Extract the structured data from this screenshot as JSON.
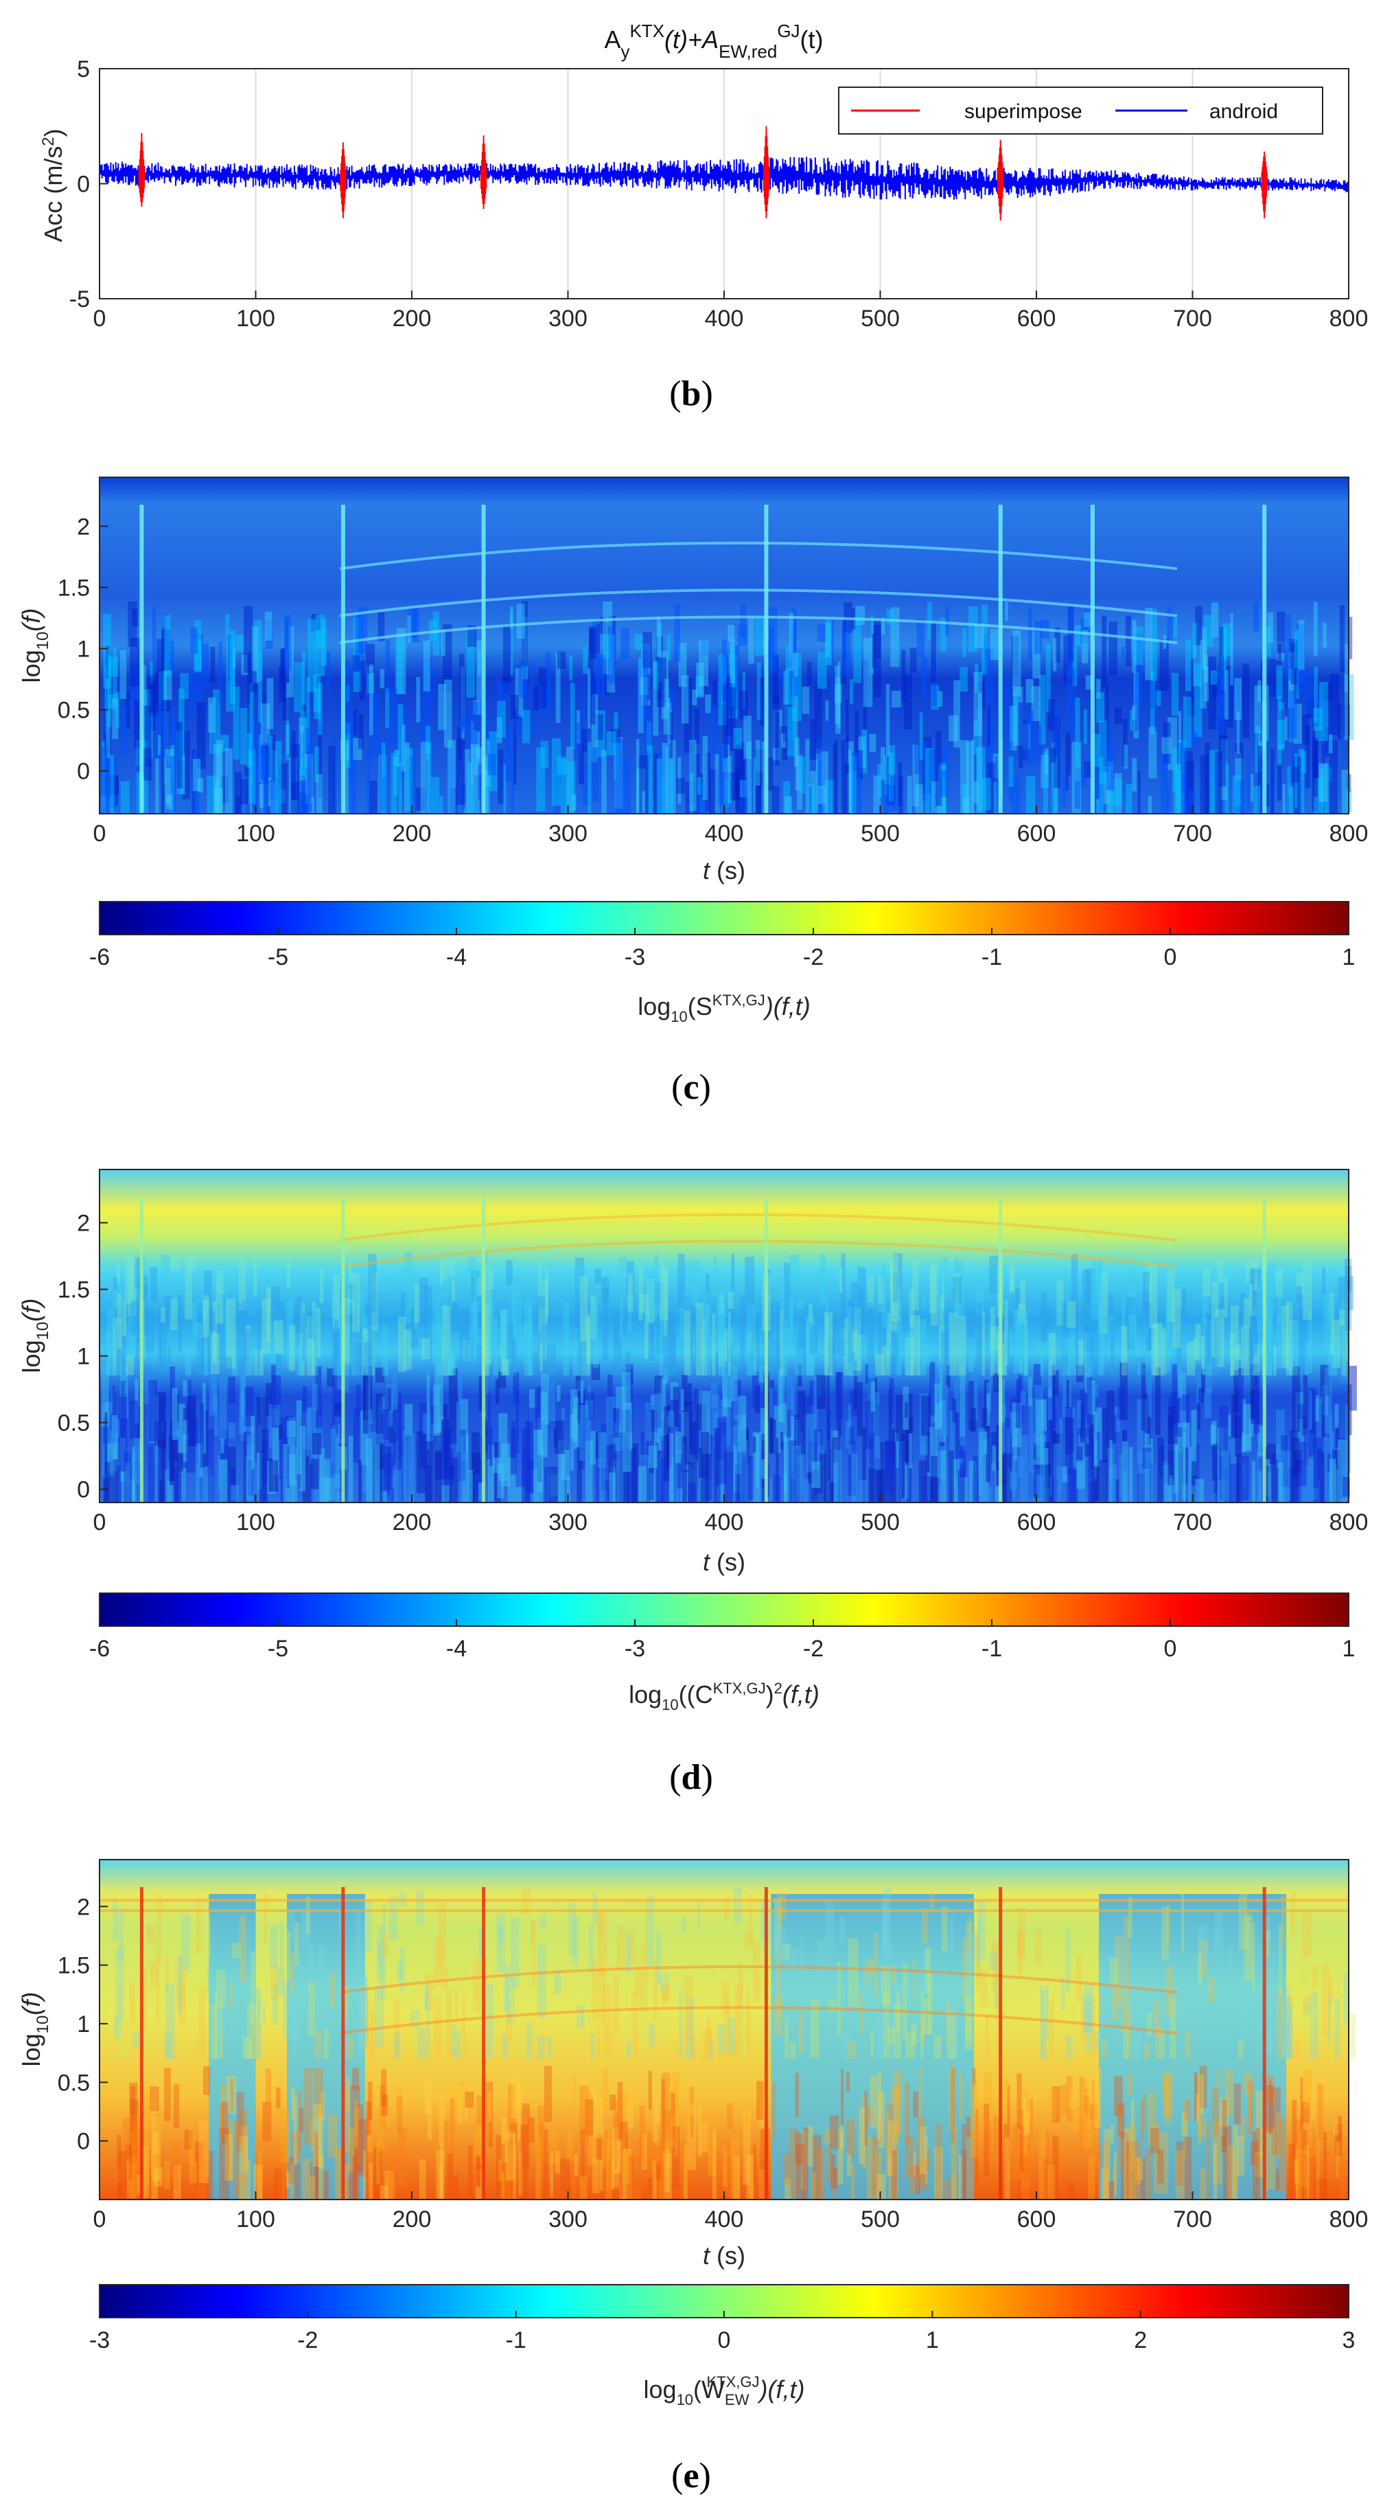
{
  "panels": [
    {
      "caption": "b",
      "title": {
        "base1": "A",
        "sub1": "y",
        "sup1": "KTX",
        "mid": "(t)+A",
        "sub2": "EW,red",
        "sup2": "GJ",
        "end": "(t)"
      },
      "ylabel": "Acc (m/s",
      "ylabel_sup": "2",
      "ylabel_end": ")",
      "legend": [
        "superimpose",
        "android"
      ]
    },
    {
      "caption": "c",
      "ylabel_parts": [
        "log",
        "10",
        "(f)"
      ],
      "xlabel_parts": [
        "t",
        " (s)"
      ],
      "cbar_label": {
        "base": "log",
        "sub": "10",
        "open": "(S",
        "sup": "KTX,GJ",
        "end": ")(f,t)"
      }
    },
    {
      "caption": "d",
      "ylabel_parts": [
        "log",
        "10",
        "(f)"
      ],
      "xlabel_parts": [
        "t",
        " (s)"
      ],
      "cbar_label": {
        "base": "log",
        "sub": "10",
        "open": "((C",
        "sup": "KTX,GJ",
        "close": ")",
        "sup2": "2",
        "end": "(f,t)"
      }
    },
    {
      "caption": "e",
      "ylabel_parts": [
        "log",
        "10",
        "(f)"
      ],
      "xlabel_parts": [
        "t",
        " (s)"
      ],
      "cbar_label": {
        "base": "log",
        "sub": "10",
        "open": "(W",
        "sub2": "EW",
        "sup": "KTX,GJ",
        "end": ")(f,t)"
      }
    }
  ],
  "chart_data": [
    {
      "type": "line",
      "xlim": [
        0,
        800
      ],
      "ylim": [
        -5,
        5
      ],
      "xticks": [
        "0",
        "100",
        "200",
        "300",
        "400",
        "500",
        "600",
        "700",
        "800"
      ],
      "yticks": [
        "5",
        "0",
        "-5"
      ],
      "grid": "vertical",
      "legend_position": "top-right",
      "series": [
        {
          "name": "superimpose",
          "color": "#ff0000",
          "spikes": [
            {
              "t": 27,
              "max": 2.2,
              "min": -1.0
            },
            {
              "t": 156,
              "max": 1.8,
              "min": -1.5
            },
            {
              "t": 246,
              "max": 2.1,
              "min": -1.1
            },
            {
              "t": 427,
              "max": 2.5,
              "min": -1.5
            },
            {
              "t": 577,
              "max": 1.9,
              "min": -1.6
            },
            {
              "t": 746,
              "max": 1.4,
              "min": -1.5
            }
          ]
        },
        {
          "name": "android",
          "color": "#0000ff",
          "t": [
            0,
            50,
            100,
            150,
            200,
            250,
            300,
            350,
            400,
            450,
            500,
            550,
            600,
            650,
            700,
            750,
            800
          ],
          "max": [
            1.0,
            0.9,
            0.9,
            0.8,
            0.9,
            0.9,
            0.9,
            1.0,
            1.1,
            1.2,
            1.1,
            0.7,
            0.7,
            0.6,
            0.3,
            0.3,
            0.2
          ],
          "min": [
            -0.1,
            -0.1,
            -0.2,
            -0.3,
            -0.1,
            0.0,
            -0.1,
            -0.2,
            -0.4,
            -0.5,
            -0.7,
            -0.7,
            -0.6,
            -0.2,
            -0.3,
            -0.3,
            -0.4
          ]
        }
      ]
    },
    {
      "type": "heatmap",
      "xlim": [
        0,
        800
      ],
      "ylim": [
        -0.35,
        2.4
      ],
      "xticks": [
        "0",
        "100",
        "200",
        "300",
        "400",
        "500",
        "600",
        "700",
        "800"
      ],
      "yticks": [
        "2",
        "1.5",
        "1",
        "0.5",
        "0"
      ],
      "clim": [
        -6,
        1
      ],
      "cbar_ticks": [
        "-6",
        "-5",
        "-4",
        "-3",
        "-2",
        "-1",
        "0",
        "1"
      ],
      "colormap": "jet",
      "dominant_value": -5,
      "vertical_streaks_t": [
        27,
        156,
        246,
        427,
        577,
        636,
        746
      ]
    },
    {
      "type": "heatmap",
      "xlim": [
        0,
        800
      ],
      "ylim": [
        -0.1,
        2.4
      ],
      "xticks": [
        "0",
        "100",
        "200",
        "300",
        "400",
        "500",
        "600",
        "700",
        "800"
      ],
      "yticks": [
        "2",
        "1.5",
        "1",
        "0.5",
        "0"
      ],
      "clim": [
        -6,
        1
      ],
      "cbar_ticks": [
        "-6",
        "-5",
        "-4",
        "-3",
        "-2",
        "-1",
        "0",
        "1"
      ],
      "colormap": "jet",
      "high_band_log10f": 2.05,
      "vertical_streaks_t": [
        27,
        156,
        246,
        427,
        577,
        746
      ]
    },
    {
      "type": "heatmap",
      "xlim": [
        0,
        800
      ],
      "ylim": [
        -0.5,
        2.4
      ],
      "xticks": [
        "0",
        "100",
        "200",
        "300",
        "400",
        "500",
        "600",
        "700",
        "800"
      ],
      "yticks": [
        "2",
        "1.5",
        "1",
        "0.5",
        "0"
      ],
      "clim": [
        -3,
        3
      ],
      "cbar_ticks": [
        "-3",
        "-2",
        "-1",
        "0",
        "1",
        "2",
        "3"
      ],
      "colormap": "jet",
      "low_value_t_ranges": [
        [
          70,
          100
        ],
        [
          120,
          170
        ],
        [
          430,
          560
        ],
        [
          640,
          760
        ]
      ],
      "vertical_streaks_t": [
        27,
        156,
        246,
        427,
        577,
        746
      ]
    }
  ]
}
